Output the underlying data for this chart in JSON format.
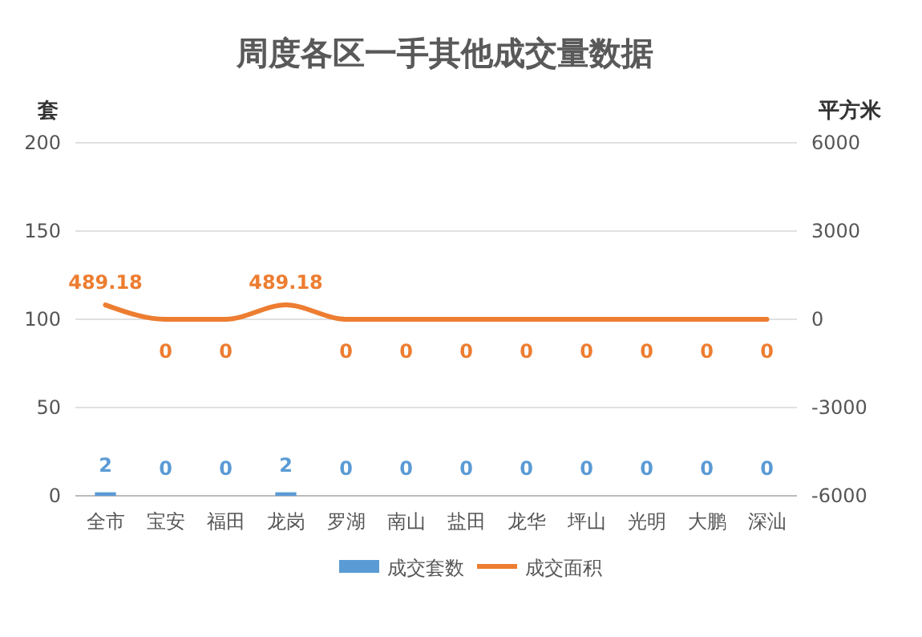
{
  "chart_data": {
    "type": "bar",
    "title": "周度各区一手其他成交量数据",
    "ylabel": "套",
    "y2label": "平方米",
    "categories": [
      "全市",
      "宝安",
      "福田",
      "龙岗",
      "罗湖",
      "南山",
      "盐田",
      "龙华",
      "坪山",
      "光明",
      "大鹏",
      "深汕"
    ],
    "series": [
      {
        "name": "成交套数",
        "color": "#5b9bd5",
        "values": [
          2,
          0,
          0,
          2,
          0,
          0,
          0,
          0,
          0,
          0,
          0,
          0
        ]
      },
      {
        "name": "成交面积",
        "type": "line",
        "axis": "y2",
        "color": "#ed7d31",
        "values": [
          489.18,
          0,
          0,
          489.18,
          0,
          0,
          0,
          0,
          0,
          0,
          0,
          0
        ]
      }
    ],
    "ylim": [
      0,
      200
    ],
    "yticks": [
      0,
      50,
      100,
      150,
      200
    ],
    "y2lim": [
      -6000,
      6000
    ],
    "y2ticks": [
      -6000,
      -3000,
      0,
      3000,
      6000
    ],
    "grid": "y",
    "legend": "bottom",
    "data_labels": true,
    "marker": "none",
    "line_style": "solid"
  }
}
